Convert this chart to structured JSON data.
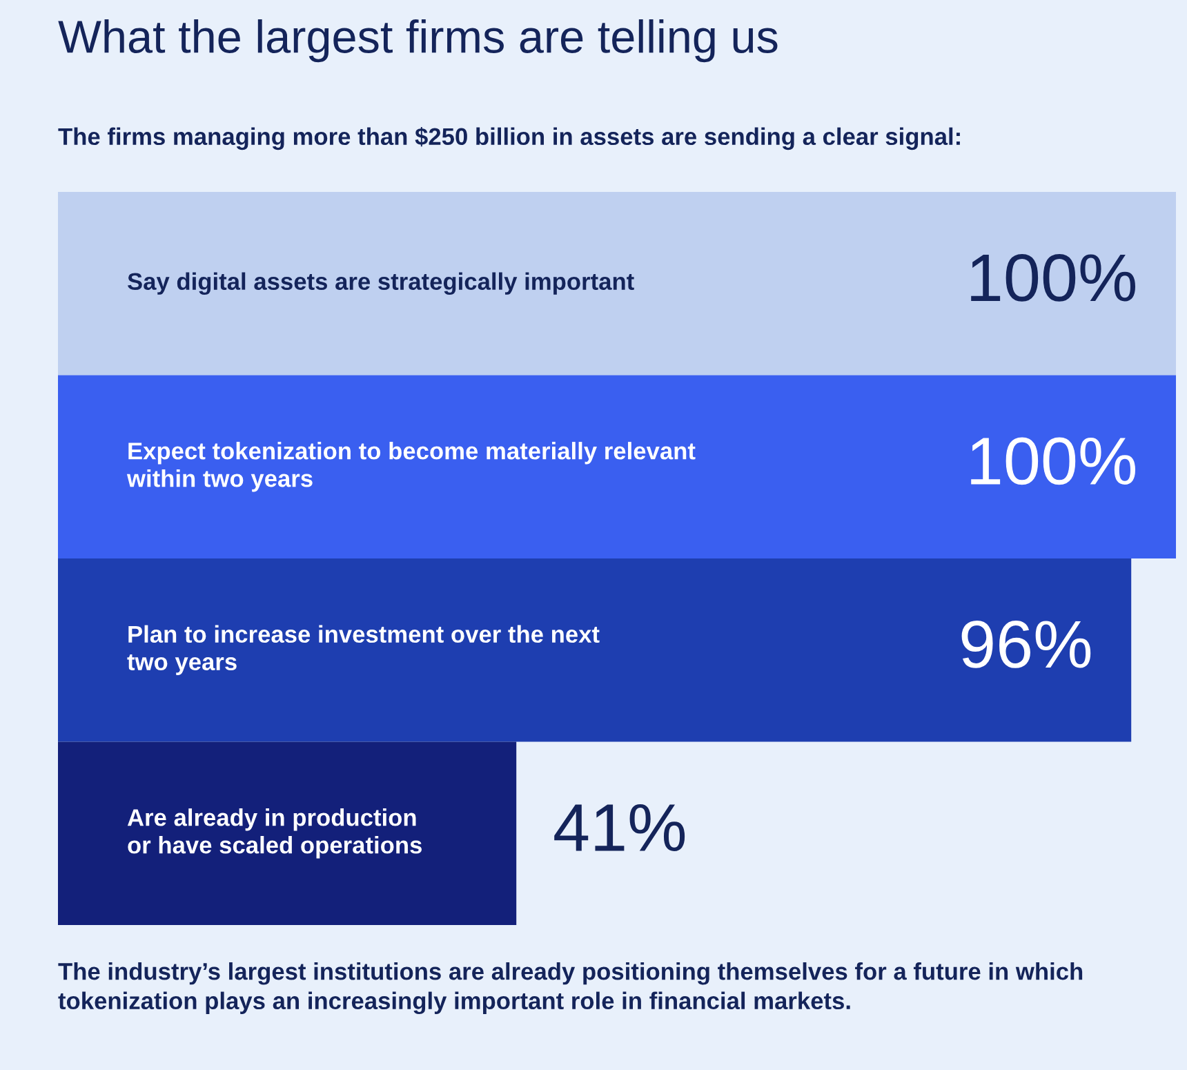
{
  "chart_data": {
    "type": "bar",
    "orientation": "horizontal",
    "title": "What the largest firms are telling us",
    "subtitle": "The firms managing more than $250 billion in assets are sending a clear signal:",
    "annotations": [
      "The industry’s largest institutions are already positioning themselves for a future in which tokenization plays an increasingly important role in financial markets."
    ],
    "categories": [
      "Say digital assets are strategically important",
      "Expect tokenization to become materially relevant\nwithin two years",
      "Plan to increase investment over the next\ntwo years",
      "Are already in production\nor have scaled operations"
    ],
    "values": [
      100,
      100,
      96,
      41
    ],
    "colors": [
      "#bfd0f0",
      "#3a5ff0",
      "#1e3eb0",
      "#13207a"
    ],
    "value_labels": [
      "100%",
      "100%",
      "96%",
      "41%"
    ],
    "xlim": [
      0,
      100
    ],
    "tick_labels": "y"
  }
}
